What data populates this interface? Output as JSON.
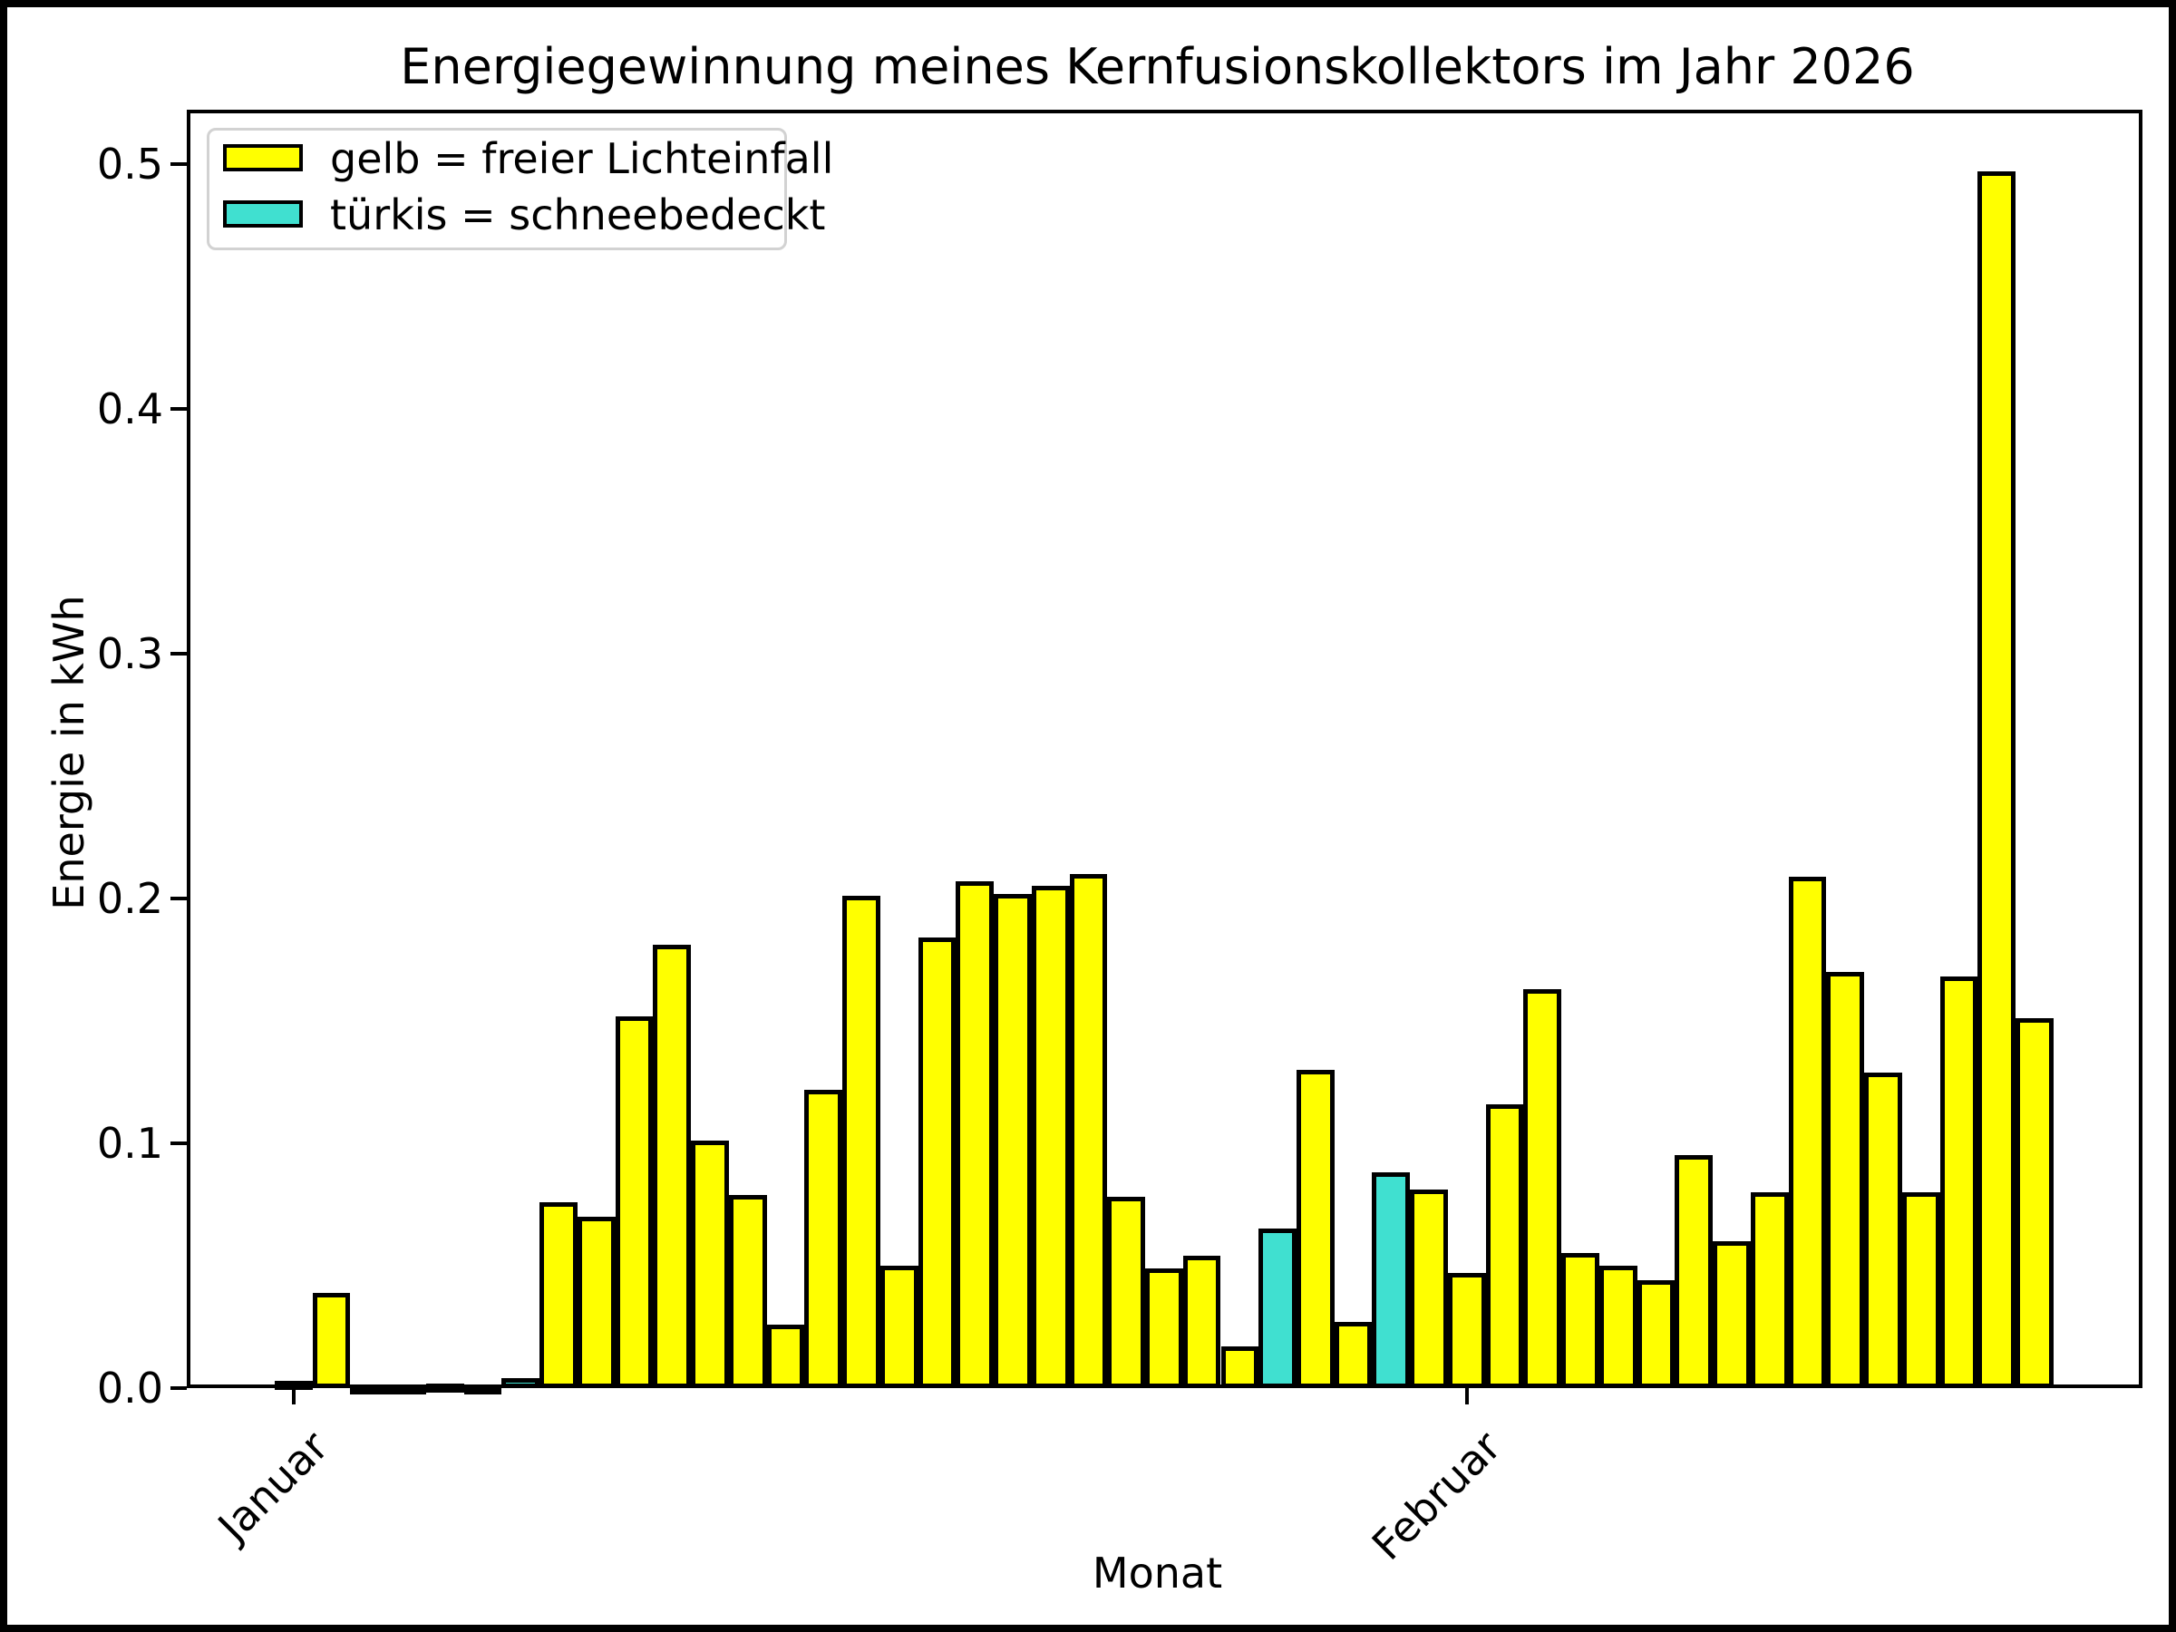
{
  "title": "Energiegewinnung meines Kernfusionskollektors im Jahr 2026",
  "axes": {
    "xlabel": "Monat",
    "ylabel": "Energie in kWh",
    "ytick_labels": [
      "0.0",
      "0.1",
      "0.2",
      "0.3",
      "0.4",
      "0.5"
    ]
  },
  "legend": {
    "entries": [
      {
        "label": "gelb = freier Lichteinfall",
        "color": "#ffff00"
      },
      {
        "label": "türkis = schneebedeckt",
        "color": "#40e0d0"
      }
    ]
  },
  "colors": {
    "free_light": "#ffff00",
    "snow_covered": "#40e0d0",
    "bar_edge": "#000000"
  },
  "chart_data": {
    "type": "bar",
    "title": "Energiegewinnung meines Kernfusionskollektors im Jahr 2026",
    "xlabel": "Monat",
    "ylabel": "Energie in kWh",
    "ylim": [
      0,
      0.522
    ],
    "yticks": [
      0.0,
      0.1,
      0.2,
      0.3,
      0.4,
      0.5
    ],
    "grid": false,
    "legend_position": "upper left",
    "x_tick_marks": [
      {
        "bar_index": 0,
        "label": "Januar"
      },
      {
        "bar_index": 31,
        "label": "Februar"
      }
    ],
    "series_note": "47 daily bars: Jan 1-31 and Feb 1-16; color marks snow cover",
    "values": [
      0.003,
      0.039,
      0.001,
      0.001,
      0.002,
      0.001,
      0.004,
      0.076,
      0.07,
      0.152,
      0.181,
      0.101,
      0.079,
      0.026,
      0.122,
      0.201,
      0.05,
      0.184,
      0.207,
      0.202,
      0.205,
      0.21,
      0.078,
      0.049,
      0.054,
      0.017,
      0.065,
      0.13,
      0.027,
      0.088,
      0.081,
      0.047,
      0.116,
      0.163,
      0.055,
      0.05,
      0.044,
      0.095,
      0.06,
      0.08,
      0.209,
      0.17,
      0.129,
      0.08,
      0.168,
      0.497,
      0.151
    ],
    "snow_covered_indices": [
      4,
      6,
      26,
      29
    ]
  }
}
